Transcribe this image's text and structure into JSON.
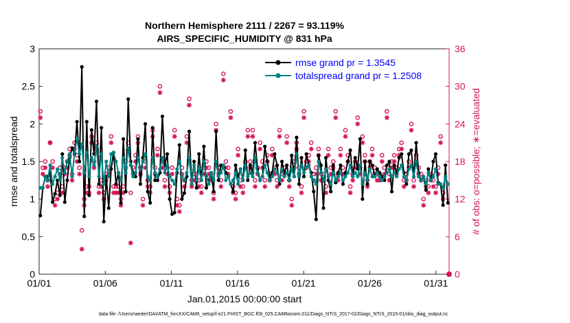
{
  "chart_data": {
    "type": "line",
    "title": "Northern Hemisphere 2111 / 2267 = 93.119%",
    "subtitle": "AIRS_SPECIFIC_HUMIDITY @ 831 hPa",
    "xlabel": "Jan.01,2015 00:00:00 start",
    "ylabel": "rmse and totalspread",
    "y2label": "# of obs: o=possible; ∗=evaluated",
    "footnote": "data file: /Users/raeder/DAI/ATM_forcXX/CAM6_setup/f.e21.FHIST_BGC.f09_025.CAM6assim.011/Diags_NTrS_2017-02/Diags_NTrS_2015-01/obs_diag_output.nc",
    "xlim": [
      1,
      32
    ],
    "ylim": [
      0,
      3
    ],
    "y2lim": [
      0,
      36
    ],
    "x_ticks": [
      1,
      6,
      11,
      16,
      21,
      26,
      31
    ],
    "x_tick_labels": [
      "01/01",
      "01/06",
      "01/11",
      "01/16",
      "01/21",
      "01/26",
      "01/31"
    ],
    "y_ticks": [
      "0",
      "0.5",
      "1",
      "1.5",
      "2",
      "2.5",
      "3"
    ],
    "y2_ticks": [
      "0",
      "6",
      "12",
      "18",
      "24",
      "30",
      "36"
    ],
    "legend_position": "top-right",
    "colors": {
      "rmse": "#000000",
      "spread": "#008080",
      "obs": "#d4145a",
      "legend_text": "#0000ff"
    },
    "series": [
      {
        "name": "rmse grand pr = 1.3545",
        "axis": "left",
        "values": [
          0.78,
          1.15,
          1.3,
          1.3,
          1.35,
          0.96,
          1.07,
          1.25,
          1.05,
          1.6,
          0.96,
          1.25,
          1.55,
          1.68,
          1.6,
          2.03,
          1.5,
          2.76,
          0.77,
          2.03,
          1.05,
          1.92,
          1.6,
          2.3,
          1.2,
          1.95,
          0.7,
          1.3,
          0.88,
          1.4,
          1.62,
          1.2,
          1.35,
          0.95,
          1.8,
          1.1,
          2.33,
          1.5,
          1.35,
          1.3,
          1.8,
          1.2,
          1.55,
          2.0,
          1.1,
          0.95,
          1.95,
          1.25,
          1.25,
          1.35,
          2.1,
          1.45,
          1.6,
          1.0,
          0.8,
          0.82,
          1.35,
          1.72,
          1.0,
          1.08,
          1.3,
          1.9,
          1.2,
          1.5,
          1.15,
          1.6,
          1.25,
          1.7,
          1.15,
          1.25,
          1.35,
          1.1,
          1.9,
          1.25,
          1.45,
          1.42,
          1.35,
          1.3,
          1.2,
          1.1,
          1.45,
          1.3,
          1.4,
          1.25,
          1.65,
          1.25,
          1.45,
          1.35,
          1.75,
          1.4,
          1.25,
          1.3,
          1.7,
          1.5,
          1.3,
          1.35,
          1.6,
          1.45,
          1.2,
          1.5,
          1.35,
          1.45,
          1.25,
          1.58,
          1.3,
          1.82,
          1.2,
          1.55,
          1.3,
          1.6,
          1.45,
          1.35,
          1.1,
          0.73,
          1.58,
          1.45,
          0.88,
          1.55,
          1.25,
          1.1,
          1.45,
          1.22,
          1.35,
          1.45,
          1.2,
          1.35,
          1.5,
          1.65,
          1.3,
          1.55,
          1.4,
          1.8,
          1.0,
          1.5,
          1.2,
          1.5,
          1.45,
          1.3,
          1.4,
          1.35,
          1.3,
          1.25,
          1.45,
          1.5,
          1.1,
          1.45,
          1.35,
          1.55,
          1.6,
          1.35,
          1.2,
          1.6,
          1.65,
          1.3,
          1.75,
          1.35,
          1.25,
          1.3,
          1.12,
          1.4,
          1.25,
          1.5,
          1.6,
          1.22,
          1.2,
          0.92,
          1.45,
          0.95
        ]
      },
      {
        "name": "totalspread grand pr = 1.2508",
        "axis": "left",
        "values": [
          1.15,
          1.15,
          1.3,
          1.25,
          1.45,
          1.2,
          1.3,
          1.4,
          1.25,
          1.55,
          1.35,
          1.5,
          1.6,
          1.3,
          1.62,
          1.8,
          1.6,
          1.73,
          1.35,
          1.62,
          1.3,
          1.55,
          1.45,
          1.7,
          1.3,
          1.6,
          1.2,
          1.5,
          1.3,
          1.6,
          1.62,
          1.5,
          1.35,
          1.25,
          1.55,
          1.35,
          1.68,
          1.45,
          1.3,
          1.35,
          1.55,
          1.4,
          1.5,
          1.6,
          1.3,
          1.25,
          1.55,
          1.35,
          1.3,
          1.4,
          1.55,
          1.35,
          1.45,
          1.3,
          1.25,
          1.2,
          1.4,
          1.5,
          1.3,
          1.25,
          1.35,
          1.55,
          1.2,
          1.45,
          1.25,
          1.4,
          1.25,
          1.5,
          1.3,
          1.2,
          1.35,
          1.25,
          1.5,
          1.3,
          1.35,
          1.45,
          1.25,
          1.3,
          1.2,
          1.25,
          1.35,
          1.2,
          1.4,
          1.25,
          1.45,
          1.3,
          1.35,
          1.3,
          1.55,
          1.35,
          1.25,
          1.3,
          1.45,
          1.35,
          1.25,
          1.3,
          1.4,
          1.35,
          1.25,
          1.4,
          1.3,
          1.35,
          1.25,
          1.4,
          1.3,
          1.6,
          1.3,
          1.45,
          1.35,
          1.42,
          1.45,
          1.3,
          1.25,
          1.2,
          1.5,
          1.35,
          1.25,
          1.4,
          1.3,
          1.2,
          1.35,
          1.25,
          1.3,
          1.35,
          1.25,
          1.3,
          1.35,
          1.45,
          1.3,
          1.35,
          1.3,
          1.45,
          1.2,
          1.35,
          1.25,
          1.4,
          1.3,
          1.3,
          1.35,
          1.3,
          1.25,
          1.3,
          1.35,
          1.4,
          1.3,
          1.35,
          1.3,
          1.4,
          1.45,
          1.3,
          1.25,
          1.4,
          1.45,
          1.3,
          1.5,
          1.3,
          1.25,
          1.3,
          1.2,
          1.35,
          1.25,
          1.3,
          1.4,
          1.2,
          1.2,
          1.15,
          1.3,
          1.2
        ]
      }
    ],
    "obs_possible": {
      "axis": "right",
      "marker": "o",
      "values": [
        26,
        17,
        18,
        15,
        21,
        18,
        12,
        13,
        17,
        14,
        17,
        18,
        20,
        16,
        21,
        19,
        17,
        7,
        12,
        14,
        14,
        22,
        18,
        21,
        14,
        15,
        13,
        16,
        17,
        22,
        14,
        14,
        14,
        12,
        14,
        18,
        21,
        13,
        17,
        19,
        22,
        17,
        12,
        18,
        15,
        14,
        23,
        17,
        20,
        30,
        18,
        15,
        17,
        14,
        17,
        23,
        12,
        11,
        17,
        15,
        22,
        28,
        15,
        16,
        16,
        15,
        14,
        17,
        18,
        17,
        16,
        13,
        24,
        17,
        15,
        32,
        18,
        17,
        26,
        14,
        13,
        20,
        15,
        14,
        18,
        23,
        18,
        23,
        15,
        17,
        21,
        18,
        15,
        19,
        16,
        20,
        17,
        15,
        23,
        16,
        17,
        22,
        15,
        12,
        18,
        21,
        17,
        14,
        26,
        18,
        19,
        21,
        16,
        17,
        20,
        16,
        16,
        14,
        20,
        17,
        18,
        26,
        16,
        20,
        17,
        23,
        19,
        14,
        16,
        18,
        25,
        17,
        22,
        19,
        15,
        18,
        20,
        17,
        16,
        16,
        19,
        17,
        26,
        16,
        18,
        19,
        17,
        20,
        21,
        15,
        16,
        18,
        24,
        15,
        19,
        17,
        16,
        12,
        15,
        14,
        16,
        15,
        14,
        17,
        22,
        13
      ]
    },
    "obs_evaluated": {
      "axis": "right",
      "marker": "*",
      "values": [
        25,
        16,
        17,
        14,
        21,
        17,
        11,
        12,
        16,
        13,
        16,
        17,
        19,
        15,
        20,
        18,
        16,
        4,
        11,
        13,
        13,
        21,
        17,
        20,
        13,
        14,
        12,
        15,
        16,
        21,
        13,
        13,
        13,
        11,
        13,
        17,
        20,
        5,
        16,
        18,
        21,
        16,
        11,
        17,
        14,
        13,
        22,
        16,
        19,
        29,
        17,
        14,
        16,
        13,
        16,
        22,
        11,
        10,
        16,
        14,
        21,
        27,
        14,
        15,
        15,
        14,
        13,
        16,
        17,
        16,
        15,
        12,
        23,
        16,
        14,
        31,
        17,
        16,
        25,
        13,
        12,
        19,
        14,
        13,
        17,
        22,
        17,
        22,
        14,
        16,
        20,
        17,
        14,
        18,
        15,
        19,
        16,
        14,
        22,
        15,
        16,
        21,
        14,
        11,
        17,
        20,
        16,
        13,
        25,
        17,
        18,
        20,
        15,
        16,
        19,
        15,
        15,
        13,
        19,
        16,
        17,
        25,
        15,
        19,
        16,
        22,
        18,
        13,
        15,
        17,
        24,
        16,
        21,
        18,
        14,
        17,
        19,
        16,
        15,
        15,
        18,
        16,
        25,
        15,
        17,
        18,
        16,
        19,
        20,
        14,
        15,
        17,
        23,
        14,
        18,
        16,
        15,
        11,
        14,
        13,
        15,
        14,
        13,
        16,
        21,
        12
      ]
    }
  }
}
